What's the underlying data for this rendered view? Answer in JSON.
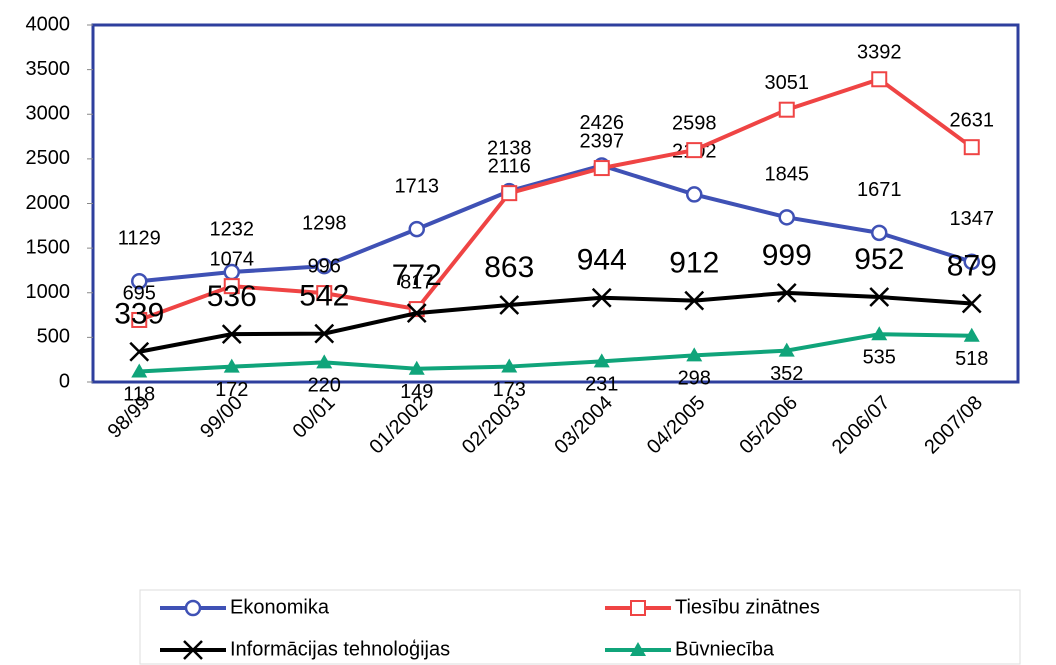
{
  "chart_data": {
    "type": "line",
    "categories": [
      "98/99",
      "99/00",
      "00/01",
      "01/2002",
      "02/2003",
      "03/2004",
      "04/2005",
      "05/2006",
      "2006/07",
      "2007/08"
    ],
    "series": [
      {
        "name": "Ekonomika",
        "color": "#3f51b5",
        "marker": "circle",
        "values": [
          1129,
          1232,
          1298,
          1713,
          2138,
          2426,
          2102,
          1845,
          1671,
          1347
        ]
      },
      {
        "name": "Tiesību zinātnes",
        "color": "#ef4444",
        "marker": "square",
        "values": [
          695,
          1074,
          996,
          817,
          2116,
          2397,
          2598,
          3051,
          3392,
          2631
        ]
      },
      {
        "name": "Informācijas tehnoloģijas",
        "color": "#000000",
        "marker": "x",
        "values": [
          339,
          536,
          542,
          772,
          863,
          944,
          912,
          999,
          952,
          879
        ]
      },
      {
        "name": "Būvniecība",
        "color": "#10a47a",
        "marker": "triangle",
        "values": [
          118,
          172,
          220,
          149,
          173,
          231,
          298,
          352,
          535,
          518
        ]
      }
    ],
    "ylim": [
      0,
      4000
    ],
    "yticks": [
      0,
      500,
      1000,
      1500,
      2000,
      2500,
      3000,
      3500,
      4000
    ]
  }
}
